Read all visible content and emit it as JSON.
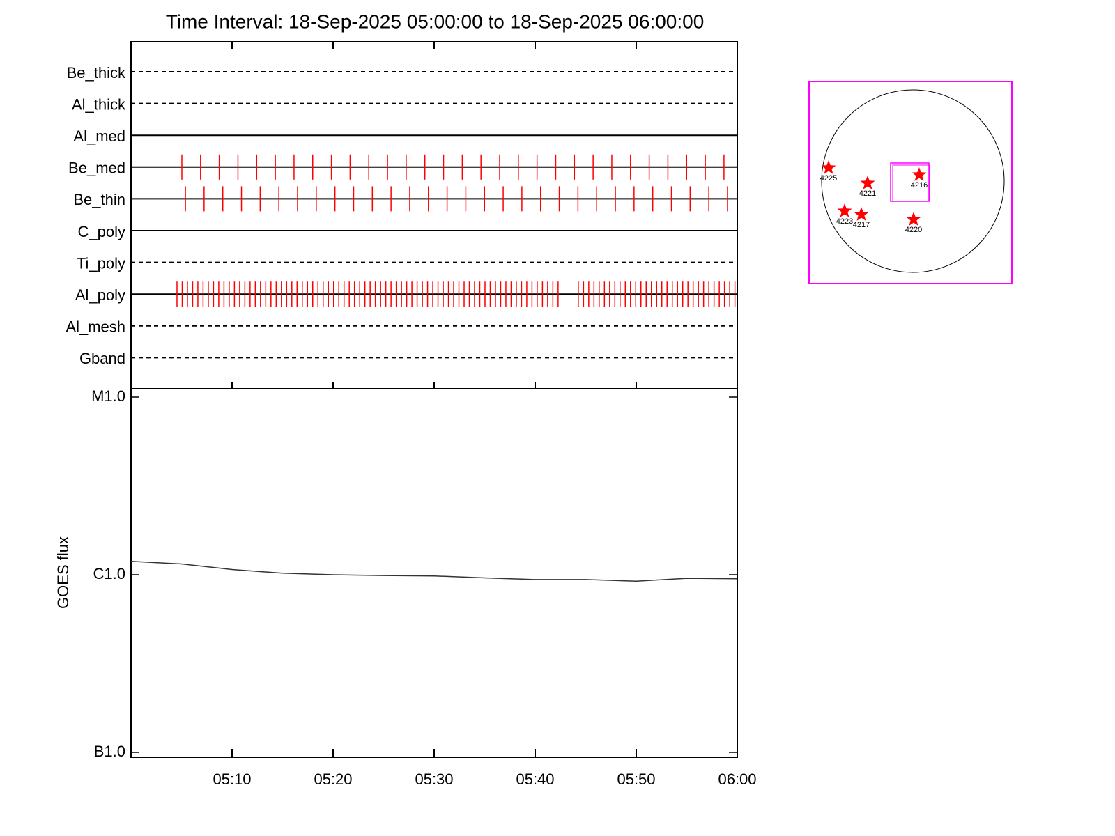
{
  "chart_data": [
    {
      "type": "timeline",
      "title": "Time Interval: 18-Sep-2025 05:00:00 to 18-Sep-2025 06:00:00",
      "event_color": "#ff0000",
      "channels": [
        {
          "name": "Be_thick",
          "style": "dashed",
          "events": []
        },
        {
          "name": "Al_thick",
          "style": "dashed",
          "events": []
        },
        {
          "name": "Al_med",
          "style": "solid",
          "events": []
        },
        {
          "name": "Be_med",
          "style": "solid",
          "events": [
            "05:05:02",
            "05:06:53",
            "05:08:44",
            "05:10:35",
            "05:12:26",
            "05:14:17",
            "05:16:08",
            "05:17:59",
            "05:19:50",
            "05:21:41",
            "05:23:32",
            "05:25:23",
            "05:27:14",
            "05:29:05",
            "05:30:56",
            "05:32:47",
            "05:34:38",
            "05:36:29",
            "05:38:20",
            "05:40:11",
            "05:42:02",
            "05:43:53",
            "05:45:44",
            "05:47:35",
            "05:49:26",
            "05:51:17",
            "05:53:08",
            "05:54:59",
            "05:56:50",
            "05:58:41"
          ]
        },
        {
          "name": "Be_thin",
          "style": "solid",
          "events": [
            "05:05:23",
            "05:07:14",
            "05:09:05",
            "05:10:56",
            "05:12:47",
            "05:14:38",
            "05:16:29",
            "05:18:20",
            "05:20:11",
            "05:22:02",
            "05:23:53",
            "05:25:44",
            "05:27:35",
            "05:29:26",
            "05:31:17",
            "05:33:08",
            "05:34:59",
            "05:36:50",
            "05:38:41",
            "05:40:32",
            "05:42:23",
            "05:44:14",
            "05:46:05",
            "05:47:56",
            "05:49:47",
            "05:51:38",
            "05:53:29",
            "05:55:20",
            "05:57:11",
            "05:59:02"
          ]
        },
        {
          "name": "C_poly",
          "style": "solid",
          "events": []
        },
        {
          "name": "Ti_poly",
          "style": "dashed",
          "events": []
        },
        {
          "name": "Al_poly",
          "style": "solid",
          "events": [
            "05:04:33",
            "05:05:04",
            "05:05:35",
            "05:06:06",
            "05:06:37",
            "05:07:08",
            "05:07:39",
            "05:08:10",
            "05:08:41",
            "05:09:12",
            "05:09:43",
            "05:10:14",
            "05:10:45",
            "05:11:16",
            "05:11:47",
            "05:12:18",
            "05:12:49",
            "05:13:20",
            "05:13:51",
            "05:14:22",
            "05:14:53",
            "05:15:24",
            "05:15:55",
            "05:16:26",
            "05:16:57",
            "05:17:28",
            "05:17:59",
            "05:18:30",
            "05:19:01",
            "05:19:32",
            "05:20:03",
            "05:20:34",
            "05:21:05",
            "05:21:36",
            "05:22:07",
            "05:22:38",
            "05:23:09",
            "05:23:40",
            "05:24:11",
            "05:24:42",
            "05:25:13",
            "05:25:44",
            "05:26:15",
            "05:26:46",
            "05:27:17",
            "05:27:48",
            "05:28:19",
            "05:28:50",
            "05:29:21",
            "05:29:52",
            "05:30:23",
            "05:30:54",
            "05:31:25",
            "05:31:56",
            "05:32:27",
            "05:32:58",
            "05:33:29",
            "05:34:00",
            "05:34:31",
            "05:35:02",
            "05:35:33",
            "05:36:04",
            "05:36:35",
            "05:37:06",
            "05:37:37",
            "05:38:08",
            "05:38:39",
            "05:39:10",
            "05:39:41",
            "05:40:12",
            "05:40:43",
            "05:41:14",
            "05:41:45",
            "05:42:16",
            "05:44:16",
            "05:44:47",
            "05:45:18",
            "05:45:49",
            "05:46:20",
            "05:46:51",
            "05:47:22",
            "05:47:53",
            "05:48:24",
            "05:48:55",
            "05:49:26",
            "05:49:57",
            "05:50:28",
            "05:50:59",
            "05:51:30",
            "05:52:01",
            "05:52:32",
            "05:53:03",
            "05:53:34",
            "05:54:05",
            "05:54:36",
            "05:55:07",
            "05:55:38",
            "05:56:09",
            "05:56:40",
            "05:57:11",
            "05:57:42",
            "05:58:13",
            "05:58:44",
            "05:59:15",
            "05:59:46"
          ]
        },
        {
          "name": "Al_mesh",
          "style": "dashed",
          "events": []
        },
        {
          "name": "Gband",
          "style": "dashed",
          "events": []
        }
      ]
    },
    {
      "type": "line",
      "ylabel": "GOES flux",
      "color": "#333333",
      "log_y": true,
      "xlim": [
        "05:00",
        "06:00"
      ],
      "xticks": [
        "05:10",
        "05:20",
        "05:30",
        "05:40",
        "05:50",
        "06:00"
      ],
      "ylim": [
        1e-07,
        1e-05
      ],
      "yticks": [
        {
          "value": 1e-07,
          "label": "B1.0"
        },
        {
          "value": 1e-06,
          "label": "C1.0"
        },
        {
          "value": 1e-05,
          "label": "M1.0"
        }
      ],
      "x": [
        "05:00",
        "05:05",
        "05:10",
        "05:15",
        "05:20",
        "05:25",
        "05:30",
        "05:35",
        "05:40",
        "05:45",
        "05:50",
        "05:55",
        "06:00"
      ],
      "values": [
        1.19e-06,
        1.15e-06,
        1.07e-06,
        1.02e-06,
        1e-06,
        9.9e-07,
        9.85e-07,
        9.6e-07,
        9.4e-07,
        9.4e-07,
        9.2e-07,
        9.55e-07,
        9.5e-07
      ]
    },
    {
      "type": "map",
      "frame_color": "#ff00ff",
      "marker_color": "#ff0000",
      "markers": [
        "4225",
        "4221",
        "4216",
        "4223",
        "4217",
        "4220"
      ]
    }
  ]
}
